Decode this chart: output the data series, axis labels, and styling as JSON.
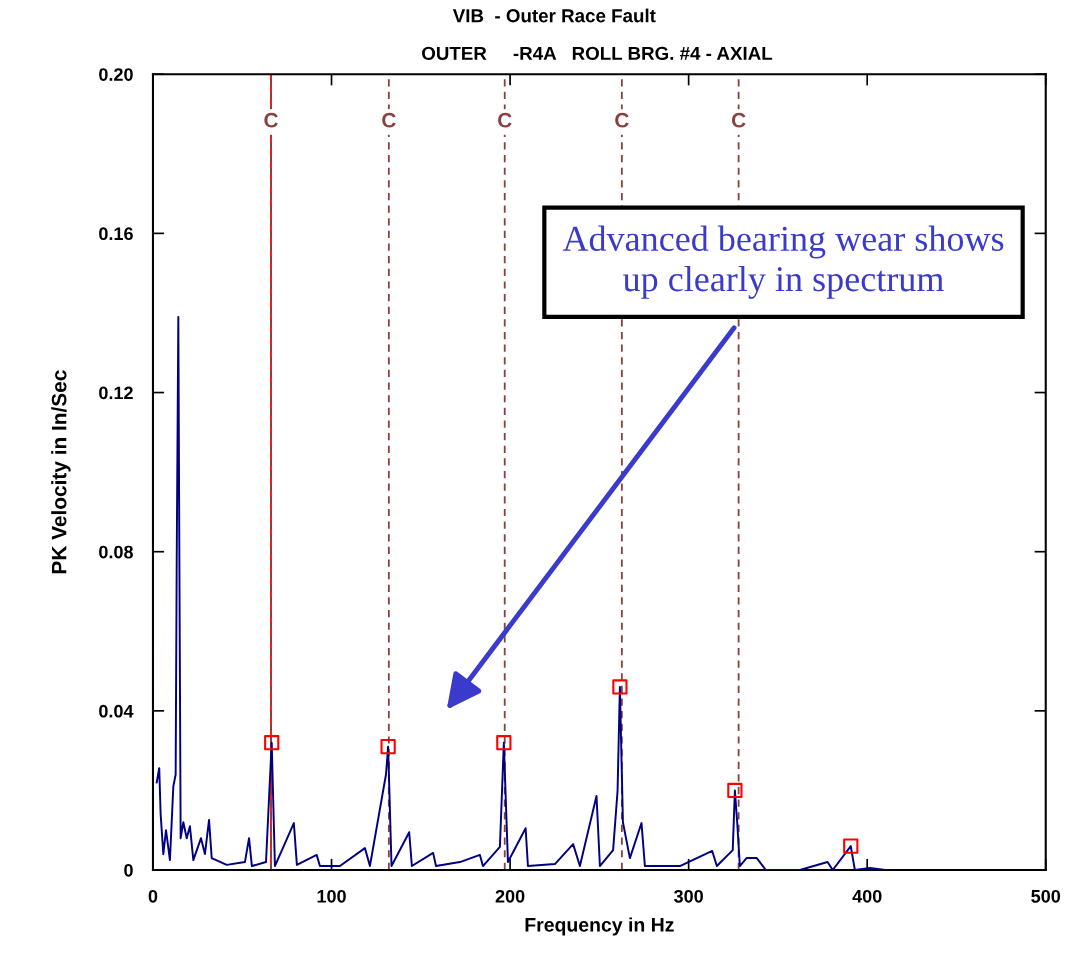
{
  "chart_data": {
    "type": "line",
    "title": "VIB  - Outer Race Fault",
    "subtitle": "OUTER     -R4A   ROLL BRG. #4 - AXIAL",
    "xlabel": "Frequency in Hz",
    "ylabel": "PK Velocity in In/Sec",
    "xlim": [
      0,
      500
    ],
    "xticks": [
      0,
      100,
      200,
      300,
      400,
      500
    ],
    "ylim": [
      0,
      0.2
    ],
    "yticks": [
      0,
      0.04,
      0.08,
      0.12,
      0.16,
      {
        "value": 0.2,
        "label": "0.20"
      }
    ],
    "grid": false,
    "series": [
      {
        "color": "#000080",
        "marker": "none",
        "x": [
          2.1,
          3.5,
          4.3,
          5.8,
          7.3,
          9.5,
          11.4,
          12.7,
          13.3,
          14.2,
          14.7,
          15.5,
          17.0,
          18.9,
          20.7,
          22.6,
          26.9,
          29.1,
          31.4,
          32.9,
          41.3,
          51.5,
          53.8,
          55.4,
          63.3,
          65.1,
          66.5,
          68.3,
          78.9,
          80.6,
          91.7,
          93.5,
          104.7,
          118.7,
          121.5,
          130.5,
          131.7,
          133.6,
          143.5,
          145.0,
          156.9,
          158.5,
          171.9,
          183.1,
          184.8,
          194.3,
          196.5,
          198.8,
          208.7,
          210.0,
          225.1,
          235.3,
          239.1,
          248.4,
          250.3,
          257.7,
          260.2,
          261.5,
          263.2,
          267.1,
          273.6,
          275.5,
          295.1,
          313.2,
          315.8,
          324.7,
          325.9,
          327.2,
          328.7,
          332.4,
          338.2,
          343.2,
          362.3,
          377.8,
          380.7,
          390.8,
          393.1,
          401.5,
          410.8
        ],
        "values": [
          0.022,
          0.0256,
          0.014,
          0.004,
          0.01,
          0.0025,
          0.021,
          0.024,
          0.078,
          0.139,
          0.087,
          0.008,
          0.012,
          0.008,
          0.011,
          0.0025,
          0.008,
          0.004,
          0.0126,
          0.003,
          0.0013,
          0.002,
          0.008,
          0.001,
          0.002,
          0.019,
          0.032,
          0.001,
          0.0118,
          0.0013,
          0.0038,
          0.001,
          0.001,
          0.0055,
          0.001,
          0.024,
          0.031,
          0.001,
          0.0095,
          0.001,
          0.0043,
          0.001,
          0.002,
          0.0038,
          0.001,
          0.0058,
          0.032,
          0.002,
          0.0105,
          0.001,
          0.0015,
          0.0065,
          0.001,
          0.0186,
          0.001,
          0.005,
          0.0199,
          0.046,
          0.012,
          0.003,
          0.0118,
          0.001,
          0.001,
          0.0048,
          0.001,
          0.005,
          0.02,
          0.012,
          0.001,
          0.003,
          0.003,
          0,
          0,
          0.002,
          0,
          0.006,
          0,
          0.0005,
          0
        ]
      },
      {
        "type": "scatter",
        "color": "#ff0000",
        "marker": "square",
        "x": [
          66.5,
          131.7,
          196.5,
          261.5,
          325.9,
          390.8
        ],
        "values": [
          0.032,
          0.031,
          0.032,
          0.046,
          0.02,
          0.006
        ]
      }
    ],
    "ref_lines": [
      {
        "axis": "x",
        "value": 66.1,
        "color": "#ff0000",
        "line_style": "solid"
      },
      {
        "axis": "x",
        "value": 66.1,
        "label": "C",
        "color": "#8b4040",
        "line_style": "dashed"
      },
      {
        "axis": "x",
        "value": 132.1,
        "label": "C",
        "color": "#8b4040",
        "line_style": "dashed"
      },
      {
        "axis": "x",
        "value": 197.0,
        "label": "C",
        "color": "#8b4040",
        "line_style": "dashed"
      },
      {
        "axis": "x",
        "value": 262.6,
        "label": "C",
        "color": "#8b4040",
        "line_style": "dashed"
      },
      {
        "axis": "x",
        "value": 328.0,
        "label": "C",
        "color": "#8b4040",
        "line_style": "dashed"
      }
    ],
    "annotations": [
      "Advanced bearing wear shows\nup clearly in spectrum"
    ]
  }
}
